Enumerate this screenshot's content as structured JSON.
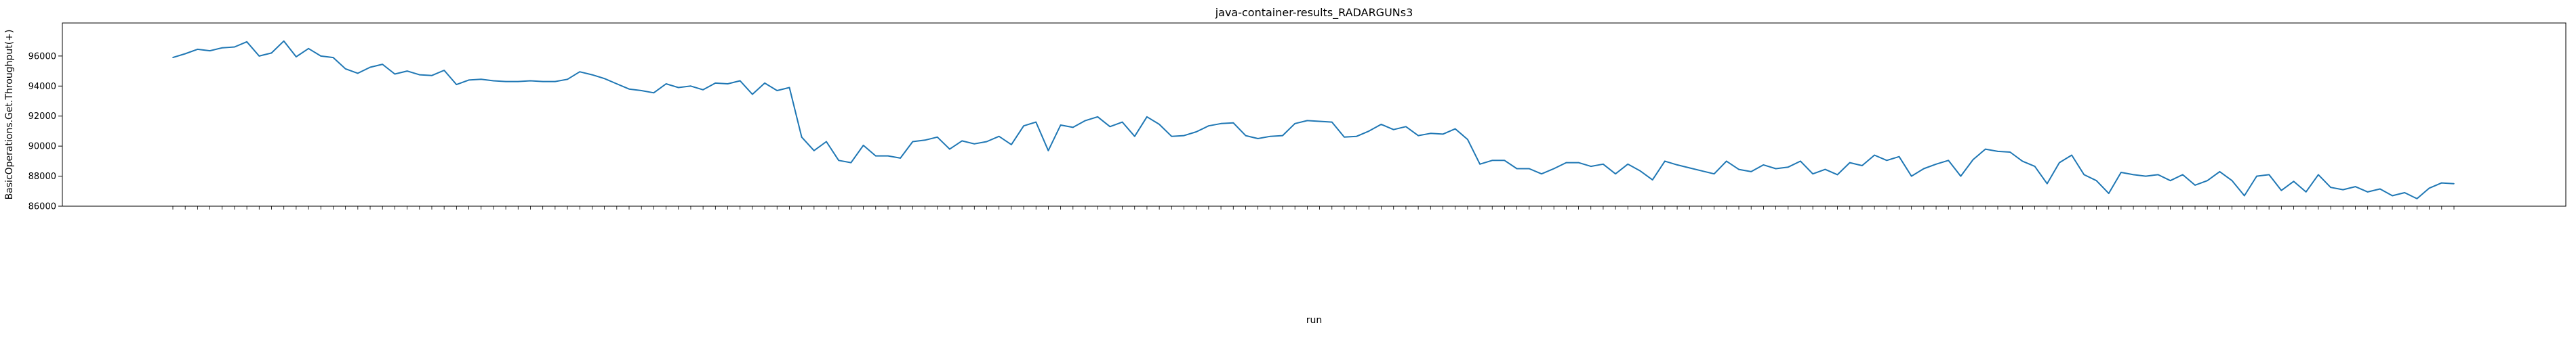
{
  "chart_data": {
    "type": "line",
    "title": "java-container-results_RADARGUNs3",
    "xlabel": "run",
    "ylabel": "BasicOperations.Get.Throughput(+)",
    "ylim": [
      86000,
      98200
    ],
    "yticks": [
      86000,
      88000,
      90000,
      92000,
      94000,
      96000
    ],
    "ytick_labels": [
      "86000",
      "88000",
      "90000",
      "92000",
      "94000",
      "96000"
    ],
    "grid": false,
    "line_color": "#1f77b4",
    "series": [
      {
        "values": [
          95900,
          96150,
          96450,
          96350,
          96550,
          96600,
          96950,
          96000,
          96200,
          97000,
          95950,
          96500,
          96000,
          95900,
          95150,
          94850,
          95250,
          95450,
          94800,
          95000,
          94750,
          94700,
          95050,
          94100,
          94400,
          94450,
          94350,
          94300,
          94300,
          94350,
          94300,
          94300,
          94450,
          94950,
          94750,
          94500,
          94150,
          93800,
          93700,
          93550,
          94150,
          93900,
          94000,
          93750,
          94200,
          94150,
          94350,
          93450,
          94200,
          93700,
          93900,
          90600,
          89700,
          90300,
          89050,
          88900,
          90050,
          89350,
          89350,
          89200,
          90300,
          90400,
          90600,
          89800,
          90350,
          90150,
          90300,
          90650,
          90100,
          91350,
          91600,
          89700,
          91400,
          91250,
          91700,
          91950,
          91300,
          91600,
          90650,
          91950,
          91450,
          90650,
          90700,
          90950,
          91350,
          91500,
          91550,
          90700,
          90500,
          90650,
          90700,
          91500,
          91700,
          91650,
          91600,
          90600,
          90650,
          91000,
          91450,
          91100,
          91300,
          90700,
          90850,
          90800,
          91150,
          90450,
          88800,
          89050,
          89050,
          88500,
          88500,
          88150,
          88500,
          88900,
          88900,
          88650,
          88800,
          88150,
          88800,
          88350,
          87750,
          89000,
          88750,
          88550,
          88350,
          88150,
          89000,
          88450,
          88300,
          88750,
          88500,
          88600,
          89000,
          88150,
          88450,
          88100,
          88900,
          88700,
          89400,
          89050,
          89300,
          88000,
          88500,
          88800,
          89050,
          88000,
          89100,
          89800,
          89650,
          89600,
          89000,
          88650,
          87500,
          88900,
          89400,
          88100,
          87700,
          86850,
          88250,
          88100,
          88000,
          88100,
          87700,
          88100,
          87400,
          87700,
          88300,
          87700,
          86700,
          88000,
          88100,
          87050,
          87650,
          86950,
          88100,
          87250,
          87100,
          87300,
          86950,
          87150,
          86700,
          86900,
          86500,
          87200,
          87550,
          87500
        ]
      }
    ]
  }
}
